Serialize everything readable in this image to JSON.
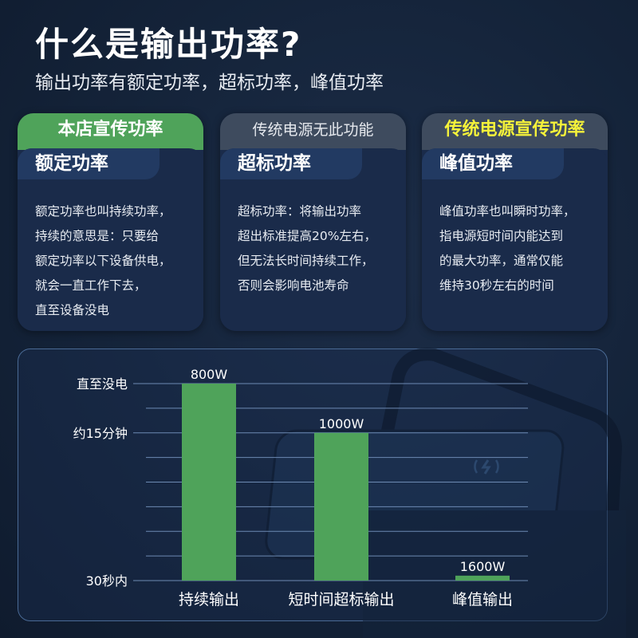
{
  "title": "什么是输出功率?",
  "subtitle": "输出功率有额定功率，超标功率，峰值功率",
  "colors": {
    "green": "#4fa35a",
    "gray_header": "#3e4b5e",
    "yellow": "#f5f23a",
    "card": "#1a2b4a"
  },
  "cards": [
    {
      "header": "本店宣传功率",
      "tab": "额定功率",
      "lines": [
        "额定功率也叫持续功率，",
        "持续的意思是：只要给",
        "额定功率以下设备供电，",
        "就会一直工作下去，",
        "直至设备没电"
      ]
    },
    {
      "header": "传统电源无此功能",
      "tab": "超标功率",
      "lines": [
        "超标功率：将输出功率",
        "超出标准提高20%左右，",
        "但无法长时间持续工作，",
        "否则会影响电池寿命"
      ]
    },
    {
      "header": "传统电源宣传功率",
      "tab": "峰值功率",
      "lines": [
        "峰值功率也叫瞬时功率，",
        "指电源短时间内能达到",
        "的最大功率，通常仅能",
        "维持30秒左右的时间"
      ]
    }
  ],
  "chart_data": {
    "type": "bar",
    "categories": [
      "持续输出",
      "短时间超标输出",
      "峰值输出"
    ],
    "data_labels": [
      "800W",
      "1000W",
      "1600W"
    ],
    "duration_level": [
      8,
      6,
      0.2
    ],
    "yticks": [
      {
        "label": "30秒内",
        "level": 0
      },
      {
        "label": "约15分钟",
        "level": 6
      },
      {
        "label": "直至没电",
        "level": 8
      }
    ],
    "ylim": [
      0,
      8
    ],
    "grid": true,
    "bar_color": "#4fa35a"
  }
}
